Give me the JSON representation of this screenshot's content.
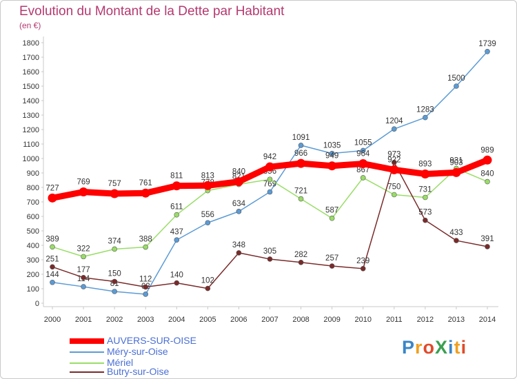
{
  "title": "Evolution du Montant de la Dette par Habitant",
  "unit": "(en €)",
  "logo_text": "ProXiti",
  "chart_data": {
    "type": "line",
    "title": "Evolution du Montant de la Dette par Habitant",
    "ylabel": "(en €)",
    "xlabel": "",
    "categories": [
      "2000",
      "2001",
      "2002",
      "2003",
      "2004",
      "2005",
      "2006",
      "2007",
      "2008",
      "2009",
      "2010",
      "2011",
      "2012",
      "2013",
      "2014"
    ],
    "ylim": [
      0,
      1800
    ],
    "yticks": [
      0,
      100,
      200,
      300,
      400,
      500,
      600,
      700,
      800,
      900,
      1000,
      1100,
      1200,
      1300,
      1400,
      1500,
      1600,
      1700,
      1800
    ],
    "grid": false,
    "legend_position": "bottom-left",
    "series": [
      {
        "name": "AUVERS-SUR-OISE",
        "color": "#ff0000",
        "values": [
          727,
          769,
          757,
          761,
          811,
          813,
          840,
          942,
          966,
          949,
          964,
          922,
          893,
          903,
          989
        ]
      },
      {
        "name": "Méry-sur-Oise",
        "color": "#5b9bd5",
        "values": [
          144,
          114,
          81,
          62,
          437,
          556,
          634,
          769,
          1091,
          1035,
          1055,
          1204,
          1283,
          1500,
          1739
        ]
      },
      {
        "name": "Mériel",
        "color": "#99dd66",
        "values": [
          389,
          322,
          374,
          388,
          611,
          778,
          821,
          856,
          721,
          587,
          867,
          750,
          731,
          931,
          840
        ]
      },
      {
        "name": "Butry-sur-Oise",
        "color": "#7a2a2a",
        "values": [
          251,
          177,
          150,
          112,
          140,
          102,
          348,
          305,
          282,
          257,
          239,
          973,
          573,
          433,
          391
        ]
      }
    ]
  }
}
